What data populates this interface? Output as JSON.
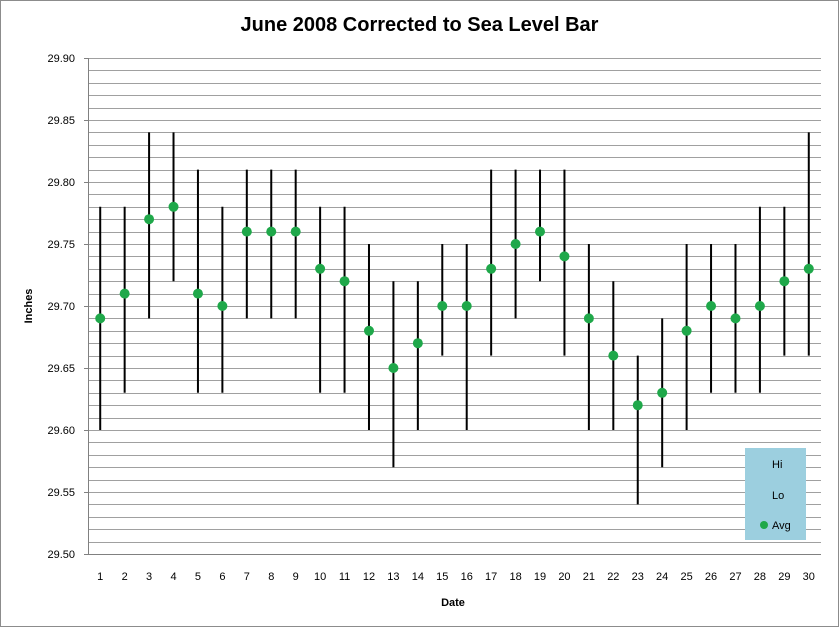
{
  "chart_data": {
    "type": "scatter",
    "title": "June 2008 Corrected to Sea Level Bar",
    "xlabel": "Date",
    "ylabel": "Inches",
    "ylim": [
      29.5,
      29.9
    ],
    "y_ticks": [
      "29.50",
      "29.55",
      "29.60",
      "29.65",
      "29.70",
      "29.75",
      "29.80",
      "29.85",
      "29.90"
    ],
    "grid": true,
    "legend_position": "bottom-right",
    "legend": [
      {
        "label": "Hi",
        "marker": "none"
      },
      {
        "label": "Lo",
        "marker": "none"
      },
      {
        "label": "Avg",
        "marker": "green-dot"
      }
    ],
    "colors": {
      "avg_marker": "#1fa84a",
      "range_bar": "#000000",
      "legend_bg": "#9ccfdf",
      "grid": "#a0a0a0"
    },
    "x": [
      1,
      2,
      3,
      4,
      5,
      6,
      7,
      8,
      9,
      10,
      11,
      12,
      13,
      14,
      15,
      16,
      17,
      18,
      19,
      20,
      21,
      22,
      23,
      24,
      25,
      26,
      27,
      28,
      29,
      30
    ],
    "series": [
      {
        "name": "Hi",
        "values": [
          29.78,
          29.78,
          29.84,
          29.84,
          29.81,
          29.78,
          29.81,
          29.81,
          29.81,
          29.78,
          29.78,
          29.75,
          29.72,
          29.72,
          29.75,
          29.75,
          29.81,
          29.81,
          29.81,
          29.81,
          29.75,
          29.72,
          29.66,
          29.69,
          29.75,
          29.75,
          29.75,
          29.78,
          29.78,
          29.84
        ]
      },
      {
        "name": "Lo",
        "values": [
          29.6,
          29.63,
          29.69,
          29.72,
          29.63,
          29.63,
          29.69,
          29.69,
          29.69,
          29.63,
          29.63,
          29.6,
          29.57,
          29.6,
          29.66,
          29.6,
          29.66,
          29.69,
          29.72,
          29.66,
          29.6,
          29.6,
          29.54,
          29.57,
          29.6,
          29.63,
          29.63,
          29.63,
          29.66,
          29.66
        ]
      },
      {
        "name": "Avg",
        "values": [
          29.69,
          29.71,
          29.77,
          29.78,
          29.71,
          29.7,
          29.76,
          29.76,
          29.76,
          29.73,
          29.72,
          29.68,
          29.65,
          29.67,
          29.7,
          29.7,
          29.73,
          29.75,
          29.76,
          29.74,
          29.69,
          29.66,
          29.62,
          29.63,
          29.68,
          29.7,
          29.69,
          29.7,
          29.72,
          29.73
        ]
      }
    ]
  }
}
